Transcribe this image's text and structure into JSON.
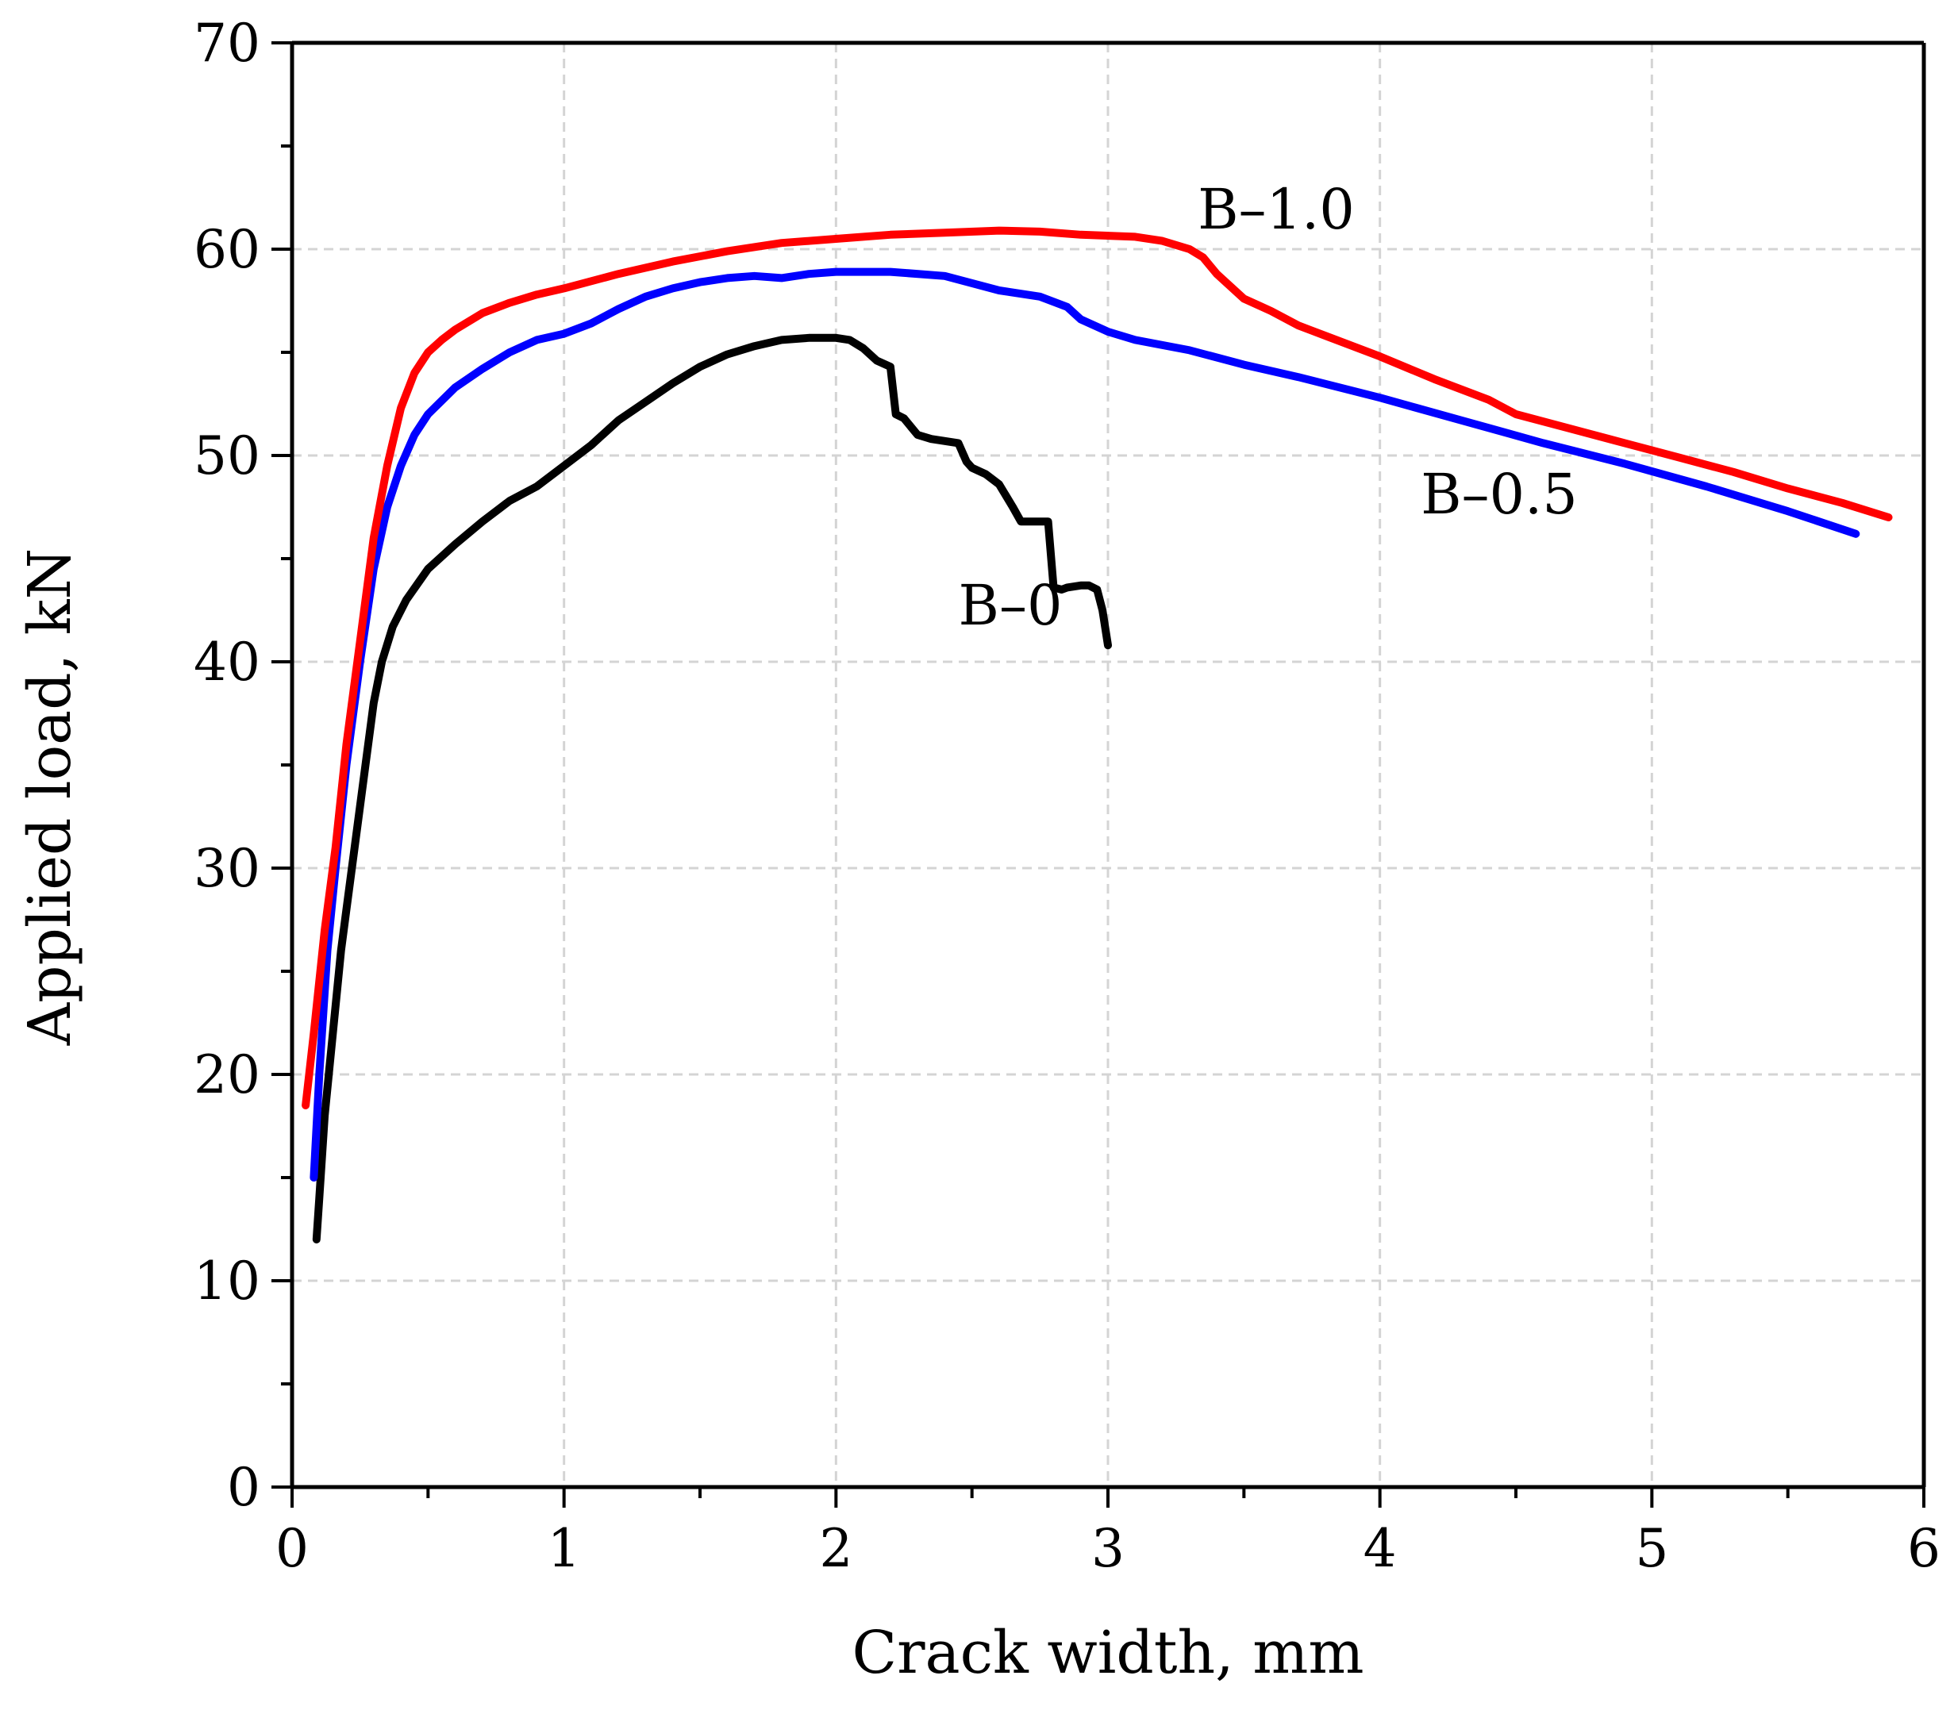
{
  "chart_data": {
    "type": "line",
    "title": "",
    "xlabel": "Crack width, mm",
    "ylabel": "Applied load, kN",
    "xlim": [
      0,
      6
    ],
    "ylim": [
      0,
      70
    ],
    "xticks": [
      0,
      1,
      2,
      3,
      4,
      5,
      6
    ],
    "yticks": [
      0,
      10,
      20,
      30,
      40,
      50,
      60,
      70
    ],
    "xtick_labels": [
      "0",
      "1",
      "2",
      "3",
      "4",
      "5",
      "6"
    ],
    "ytick_labels": [
      "0",
      "10",
      "20",
      "30",
      "40",
      "50",
      "60",
      "70"
    ],
    "grid": true,
    "series": [
      {
        "name": "B–0",
        "color": "#000000",
        "label_pos": [
          2.45,
          41.8
        ],
        "x": [
          0.09,
          0.1,
          0.12,
          0.15,
          0.18,
          0.2,
          0.23,
          0.27,
          0.3,
          0.33,
          0.37,
          0.42,
          0.5,
          0.6,
          0.7,
          0.8,
          0.9,
          1.0,
          1.1,
          1.2,
          1.3,
          1.4,
          1.5,
          1.6,
          1.7,
          1.8,
          1.9,
          2.0,
          2.05,
          2.1,
          2.15,
          2.2,
          2.22,
          2.25,
          2.3,
          2.35,
          2.4,
          2.45,
          2.48,
          2.5,
          2.55,
          2.6,
          2.65,
          2.68,
          2.72,
          2.75,
          2.78,
          2.8,
          2.83,
          2.85,
          2.9,
          2.93,
          2.96,
          2.98,
          3.0
        ],
        "y": [
          12,
          14,
          18,
          22,
          26,
          28,
          31,
          35,
          38,
          40,
          41.7,
          43,
          44.5,
          45.7,
          46.8,
          47.8,
          48.5,
          49.5,
          50.5,
          51.7,
          52.6,
          53.5,
          54.3,
          54.9,
          55.3,
          55.6,
          55.7,
          55.7,
          55.6,
          55.2,
          54.6,
          54.3,
          52.0,
          51.8,
          51.0,
          50.8,
          50.7,
          50.6,
          49.7,
          49.4,
          49.1,
          48.6,
          47.5,
          46.8,
          46.8,
          46.8,
          46.8,
          43.6,
          43.5,
          43.6,
          43.7,
          43.7,
          43.5,
          42.5,
          40.8
        ]
      },
      {
        "name": "B–0.5",
        "color": "#0000ff",
        "label_pos": [
          4.15,
          47.2
        ],
        "x": [
          0.08,
          0.1,
          0.13,
          0.16,
          0.2,
          0.25,
          0.3,
          0.35,
          0.4,
          0.45,
          0.5,
          0.6,
          0.7,
          0.8,
          0.9,
          1.0,
          1.1,
          1.2,
          1.3,
          1.4,
          1.5,
          1.6,
          1.7,
          1.8,
          1.9,
          2.0,
          2.2,
          2.4,
          2.6,
          2.75,
          2.85,
          2.9,
          3.0,
          3.1,
          3.3,
          3.5,
          3.7,
          4.0,
          4.3,
          4.6,
          4.9,
          5.2,
          5.5,
          5.75
        ],
        "y": [
          15,
          20,
          26,
          30,
          35,
          40,
          44.5,
          47.5,
          49.5,
          51.0,
          52.0,
          53.3,
          54.2,
          55.0,
          55.6,
          55.9,
          56.4,
          57.1,
          57.7,
          58.1,
          58.4,
          58.6,
          58.7,
          58.6,
          58.8,
          58.9,
          58.9,
          58.7,
          58.0,
          57.7,
          57.2,
          56.6,
          56.0,
          55.6,
          55.1,
          54.4,
          53.8,
          52.8,
          51.7,
          50.6,
          49.6,
          48.5,
          47.3,
          46.2
        ]
      },
      {
        "name": "B–1.0",
        "color": "#ff0000",
        "label_pos": [
          3.33,
          61.0
        ],
        "x": [
          0.05,
          0.08,
          0.12,
          0.16,
          0.2,
          0.25,
          0.3,
          0.35,
          0.4,
          0.45,
          0.5,
          0.55,
          0.6,
          0.7,
          0.8,
          0.9,
          1.0,
          1.2,
          1.4,
          1.6,
          1.8,
          2.0,
          2.2,
          2.4,
          2.6,
          2.75,
          2.9,
          3.1,
          3.2,
          3.3,
          3.35,
          3.4,
          3.45,
          3.5,
          3.6,
          3.7,
          3.8,
          4.0,
          4.2,
          4.4,
          4.5,
          4.7,
          4.9,
          5.1,
          5.3,
          5.5,
          5.7,
          5.87
        ],
        "y": [
          18.5,
          22,
          27,
          31,
          36,
          41,
          46,
          49.5,
          52.3,
          54.0,
          55.0,
          55.6,
          56.1,
          56.9,
          57.4,
          57.8,
          58.1,
          58.8,
          59.4,
          59.9,
          60.3,
          60.5,
          60.7,
          60.8,
          60.9,
          60.85,
          60.7,
          60.6,
          60.4,
          60.0,
          59.6,
          58.8,
          58.2,
          57.6,
          57.0,
          56.3,
          55.8,
          54.8,
          53.7,
          52.7,
          52.0,
          51.3,
          50.6,
          49.9,
          49.2,
          48.4,
          47.7,
          47.0
        ]
      }
    ]
  }
}
